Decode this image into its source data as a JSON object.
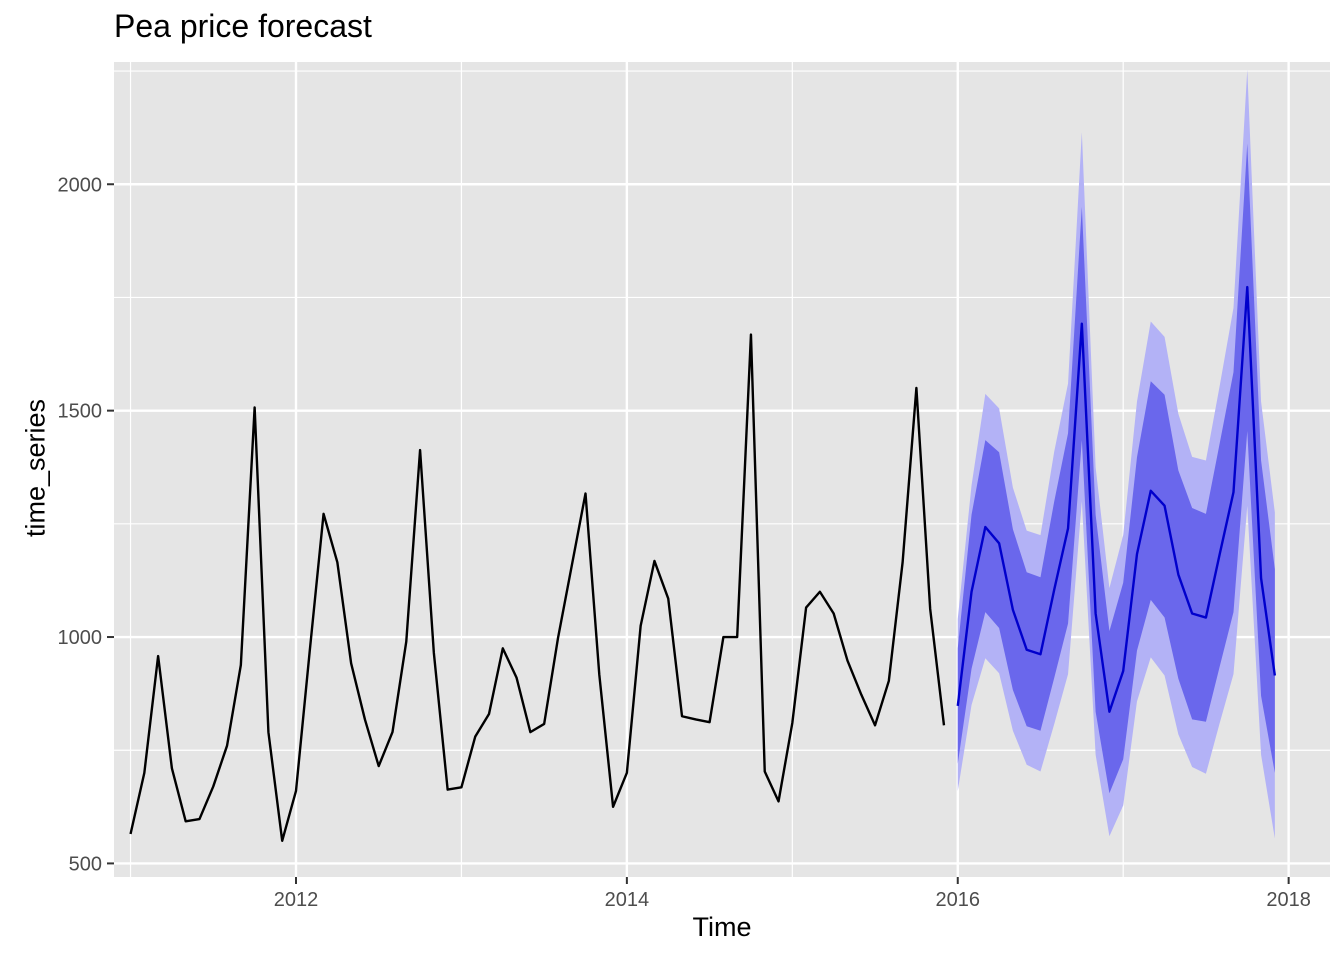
{
  "chart_data": {
    "type": "line",
    "title": "Pea price forecast",
    "xlabel": "Time",
    "ylabel": "time_series",
    "xlim": [
      2010.9,
      2018.25
    ],
    "ylim": [
      470,
      2270
    ],
    "x_ticks": [
      2012,
      2014,
      2016,
      2018
    ],
    "y_ticks": [
      500,
      1000,
      1500,
      2000
    ],
    "x_tick_labels": [
      "2012",
      "2014",
      "2016",
      "2018"
    ],
    "y_tick_labels": [
      "500",
      "1000",
      "1500",
      "2000"
    ],
    "grid": true,
    "legend": "none",
    "colors": {
      "panel_background": "#E5E5E5",
      "grid": "#FFFFFF",
      "history_line": "#000000",
      "forecast_line": "#0000CC",
      "pi80_fill": "#6A67EC",
      "pi95_fill": "#B3B2F6"
    },
    "history": {
      "start": 2011.0,
      "step": 0.0833333,
      "values": [
        565,
        700,
        958,
        710,
        593,
        598,
        670,
        760,
        938,
        1507,
        790,
        550,
        660,
        970,
        1272,
        1165,
        942,
        818,
        715,
        790,
        990,
        1413,
        965,
        663,
        668,
        780,
        830,
        975,
        910,
        790,
        808,
        997,
        1157,
        1317,
        917,
        625,
        700,
        1025,
        1168,
        1085,
        825,
        818,
        812,
        1000,
        1000,
        1668,
        703,
        637,
        810,
        1065,
        1100,
        1052,
        948,
        873,
        805,
        903,
        1165,
        1550,
        1062,
        805
      ]
    },
    "forecast": {
      "start": 2016.0,
      "step": 0.0833333,
      "mean": [
        848,
        1100,
        1243,
        1207,
        1060,
        972,
        962,
        1105,
        1240,
        1692,
        1052,
        835,
        925,
        1183,
        1323,
        1290,
        1138,
        1052,
        1043,
        1183,
        1320,
        1773,
        1130,
        915
      ],
      "lo80": [
        720,
        930,
        1055,
        1020,
        883,
        803,
        793,
        910,
        1030,
        1435,
        835,
        655,
        730,
        970,
        1082,
        1043,
        908,
        818,
        813,
        935,
        1055,
        1455,
        870,
        700
      ],
      "hi80": [
        975,
        1270,
        1435,
        1408,
        1238,
        1143,
        1132,
        1300,
        1450,
        1950,
        1270,
        1013,
        1120,
        1397,
        1565,
        1535,
        1368,
        1285,
        1272,
        1428,
        1585,
        2090,
        1390,
        1150
      ],
      "lo95": [
        660,
        850,
        953,
        920,
        793,
        718,
        703,
        808,
        918,
        1300,
        740,
        560,
        628,
        858,
        955,
        915,
        785,
        713,
        698,
        810,
        918,
        1290,
        740,
        555
      ],
      "hi95": [
        1040,
        1335,
        1537,
        1505,
        1330,
        1235,
        1225,
        1410,
        1560,
        2115,
        1375,
        1108,
        1225,
        1520,
        1697,
        1663,
        1493,
        1398,
        1390,
        1555,
        1727,
        2253,
        1520,
        1275
      ]
    }
  }
}
